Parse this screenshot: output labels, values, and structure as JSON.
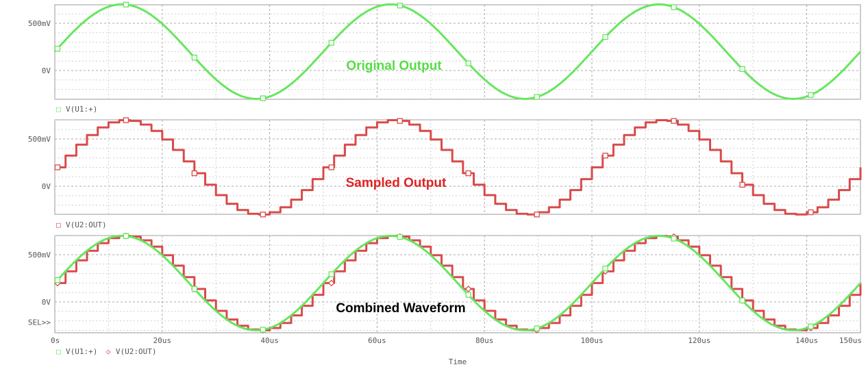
{
  "chart_data": {
    "type": "line",
    "xlabel": "Time",
    "x_ticks": [
      "0s",
      "20us",
      "40us",
      "60us",
      "80us",
      "100us",
      "120us",
      "140us",
      "150us"
    ],
    "xlim_us": [
      0,
      150
    ],
    "period_us": 50,
    "sample_step_us": 2,
    "colors": {
      "original": "#66e65e",
      "sampled": "#d94a4a"
    },
    "panels": [
      {
        "name": "original-output-plot",
        "y_ticks": [
          "500mV",
          "0V"
        ],
        "ylim_V": [
          -0.32,
          0.72
        ],
        "annotation": "Original Output",
        "annotation_color": "#55dd44",
        "legend": [
          {
            "marker": "□",
            "label": "V(U1:+)",
            "color": "#66e65e"
          }
        ],
        "series": [
          {
            "signal": "V(U1:+)",
            "kind": "sine",
            "offset_V": 0.2,
            "amplitude_V": 0.5,
            "period_us": 50,
            "color": "#66e65e",
            "marker": "square"
          }
        ]
      },
      {
        "name": "sampled-output-plot",
        "y_ticks": [
          "500mV",
          "0V"
        ],
        "ylim_V": [
          -0.32,
          0.72
        ],
        "annotation": "Sampled Output",
        "annotation_color": "#dd2222",
        "legend": [
          {
            "marker": "□",
            "label": "V(U2:OUT)",
            "color": "#d94a4a"
          }
        ],
        "series": [
          {
            "signal": "V(U2:OUT)",
            "kind": "sample-hold",
            "offset_V": 0.2,
            "amplitude_V": 0.5,
            "period_us": 50,
            "step_us": 2,
            "color": "#d94a4a",
            "marker": "square"
          }
        ]
      },
      {
        "name": "combined-waveform-plot",
        "y_ticks": [
          "500mV",
          "0V",
          "SEL>>"
        ],
        "ylim_V": [
          -0.32,
          0.72
        ],
        "annotation": "Combined Waveform",
        "annotation_color": "#000000",
        "legend": [
          {
            "marker": "□",
            "label": "V(U1:+)",
            "color": "#66e65e"
          },
          {
            "marker": "◇",
            "label": "V(U2:OUT)",
            "color": "#d94a4a"
          }
        ],
        "series": [
          {
            "signal": "V(U2:OUT)",
            "kind": "sample-hold",
            "offset_V": 0.2,
            "amplitude_V": 0.5,
            "period_us": 50,
            "step_us": 2,
            "color": "#d94a4a",
            "marker": "diamond"
          },
          {
            "signal": "V(U1:+)",
            "kind": "sine",
            "offset_V": 0.2,
            "amplitude_V": 0.5,
            "period_us": 50,
            "color": "#66e65e",
            "marker": "square"
          }
        ]
      }
    ]
  }
}
